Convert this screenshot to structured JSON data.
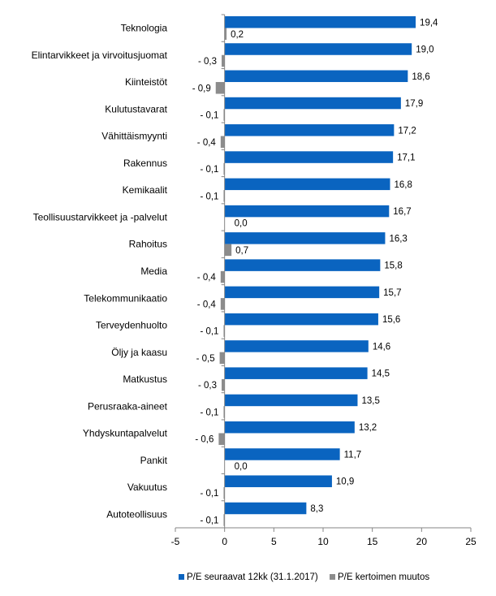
{
  "chart_data": {
    "type": "bar",
    "orientation": "horizontal",
    "title": "",
    "xlabel": "",
    "ylabel": "",
    "xlim": [
      -5,
      25
    ],
    "x_ticks": [
      -5,
      0,
      5,
      10,
      15,
      20,
      25
    ],
    "grid": false,
    "legend_position": "bottom",
    "categories": [
      "Teknologia",
      "Elintarvikkeet ja virvoitusjuomat",
      "Kiinteistöt",
      "Kulutustavarat",
      "Vähittäismyynti",
      "Rakennus",
      "Kemikaalit",
      "Teollisuustarvikkeet ja -palvelut",
      "Rahoitus",
      "Media",
      "Telekommunikaatio",
      "Terveydenhuolto",
      "Öljy ja kaasu",
      "Matkustus",
      "Perusraaka-aineet",
      "Yhdyskuntapalvelut",
      "Pankit",
      "Vakuutus",
      "Autoteollisuus"
    ],
    "series": [
      {
        "name": "P/E seuraavat 12kk (31.1.2017)",
        "color": "#0a64c0",
        "values": [
          19.4,
          19.0,
          18.6,
          17.9,
          17.2,
          17.1,
          16.8,
          16.7,
          16.3,
          15.8,
          15.7,
          15.6,
          14.6,
          14.5,
          13.5,
          13.2,
          11.7,
          10.9,
          8.3
        ],
        "labels": [
          "19,4",
          "19,0",
          "18,6",
          "17,9",
          "17,2",
          "17,1",
          "16,8",
          "16,7",
          "16,3",
          "15,8",
          "15,7",
          "15,6",
          "14,6",
          "14,5",
          "13,5",
          "13,2",
          "11,7",
          "10,9",
          "8,3"
        ]
      },
      {
        "name": "P/E kertoimen muutos",
        "color": "#8c8c8c",
        "values": [
          0.2,
          -0.3,
          -0.9,
          -0.1,
          -0.4,
          -0.1,
          -0.1,
          0.0,
          0.7,
          -0.4,
          -0.4,
          -0.1,
          -0.5,
          -0.3,
          -0.1,
          -0.6,
          0.0,
          -0.1,
          -0.1
        ],
        "labels": [
          "0,2",
          "- 0,3",
          "- 0,9",
          "- 0,1",
          "- 0,4",
          "- 0,1",
          "- 0,1",
          "0,0",
          "0,7",
          "- 0,4",
          "- 0,4",
          "- 0,1",
          "- 0,5",
          "- 0,3",
          "- 0,1",
          "- 0,6",
          "0,0",
          "- 0,1",
          "- 0,1"
        ]
      }
    ]
  }
}
